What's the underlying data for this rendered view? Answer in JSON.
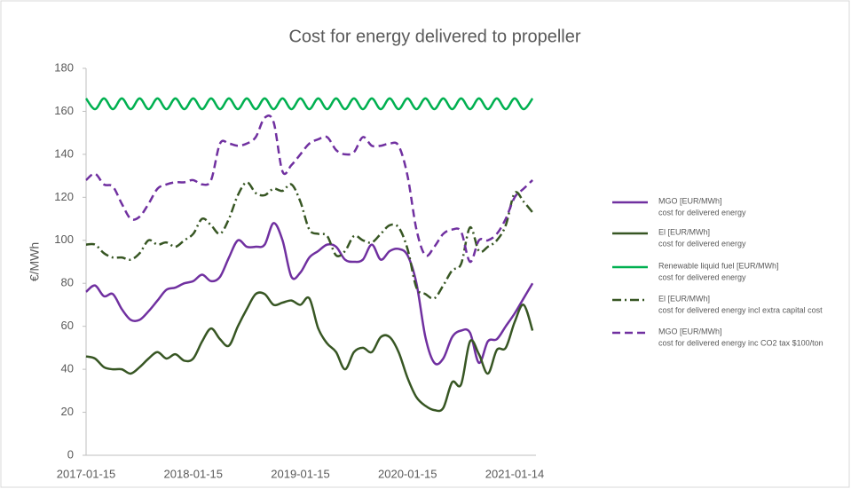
{
  "chart_data": {
    "type": "line",
    "title": "Cost for energy delivered to propeller",
    "ylabel": "€/MWh",
    "categories": [
      "2017-01-15",
      null,
      null,
      null,
      null,
      null,
      null,
      null,
      null,
      null,
      null,
      null,
      "2018-01-15",
      null,
      null,
      null,
      null,
      null,
      null,
      null,
      null,
      null,
      null,
      null,
      "2019-01-15",
      null,
      null,
      null,
      null,
      null,
      null,
      null,
      null,
      null,
      null,
      null,
      "2020-01-15",
      null,
      null,
      null,
      null,
      null,
      null,
      null,
      null,
      null,
      null,
      null,
      "2021-01-14",
      null,
      null
    ],
    "ylim": [
      0,
      180
    ],
    "yticks": [
      0,
      20,
      40,
      60,
      80,
      100,
      120,
      140,
      160,
      180
    ],
    "legend": "right",
    "series": [
      {
        "name": "MGO [EUR/MWh]",
        "description": "cost for delivered energy",
        "color": "#7030a0",
        "dash": "solid",
        "values": [
          76,
          79,
          74,
          75,
          68,
          63,
          63,
          67,
          72,
          77,
          78,
          80,
          81,
          84,
          81,
          83,
          92,
          100,
          97,
          97,
          98,
          108,
          100,
          83,
          85,
          92,
          95,
          98,
          97,
          91,
          90,
          91,
          98,
          91,
          95,
          96,
          93,
          80,
          55,
          43,
          45,
          55,
          58,
          57,
          43,
          53,
          54,
          60,
          66,
          73,
          80
        ]
      },
      {
        "name": "El [EUR/MWh]",
        "description": "cost for delivered energy",
        "color": "#375623",
        "dash": "solid",
        "values": [
          46,
          45,
          41,
          40,
          40,
          38,
          41,
          45,
          48,
          45,
          47,
          44,
          45,
          53,
          59,
          54,
          51,
          60,
          68,
          75,
          75,
          70,
          71,
          72,
          70,
          73,
          59,
          52,
          48,
          40,
          48,
          50,
          48,
          55,
          55,
          48,
          36,
          27,
          23,
          21,
          22,
          34,
          33,
          53,
          47,
          38,
          49,
          50,
          62,
          70,
          58
        ]
      },
      {
        "name": "Renewable liquid fuel [EUR/MWh]",
        "description": "cost for delivered energy",
        "color": "#00b050",
        "dash": "solid",
        "values": [
          166,
          161,
          166,
          161,
          166,
          161,
          166,
          161,
          166,
          161,
          166,
          161,
          166,
          161,
          166,
          161,
          166,
          161,
          166,
          161,
          166,
          161,
          166,
          161,
          166,
          161,
          166,
          161,
          166,
          161,
          166,
          161,
          166,
          161,
          166,
          161,
          166,
          161,
          166,
          161,
          166,
          161,
          166,
          161,
          166,
          161,
          166,
          161,
          166,
          161,
          166
        ]
      },
      {
        "name": "El [EUR/MWh]",
        "description": "cost for delivered energy incl extra capital cost",
        "color": "#375623",
        "dash": "dashdot",
        "values": [
          98,
          98,
          94,
          92,
          92,
          91,
          94,
          100,
          98,
          99,
          97,
          100,
          103,
          110,
          107,
          103,
          110,
          121,
          127,
          122,
          121,
          124,
          123,
          126,
          118,
          105,
          103,
          102,
          93,
          95,
          102,
          100,
          99,
          103,
          107,
          106,
          96,
          78,
          75,
          73,
          79,
          86,
          89,
          106,
          95,
          97,
          100,
          107,
          122,
          118,
          113
        ]
      },
      {
        "name": "MGO [EUR/MWh]",
        "description": "cost for delivered energy inc CO2 tax $100/ton",
        "color": "#7030a0",
        "dash": "dashed",
        "values": [
          128,
          131,
          126,
          125,
          117,
          110,
          111,
          117,
          124,
          126,
          127,
          127,
          128,
          126,
          128,
          145,
          145,
          144,
          145,
          148,
          157,
          155,
          132,
          135,
          140,
          145,
          147,
          148,
          142,
          140,
          141,
          148,
          144,
          144,
          145,
          144,
          130,
          105,
          93,
          97,
          103,
          105,
          104,
          90,
          100,
          100,
          103,
          110,
          120,
          124,
          128
        ]
      }
    ]
  }
}
